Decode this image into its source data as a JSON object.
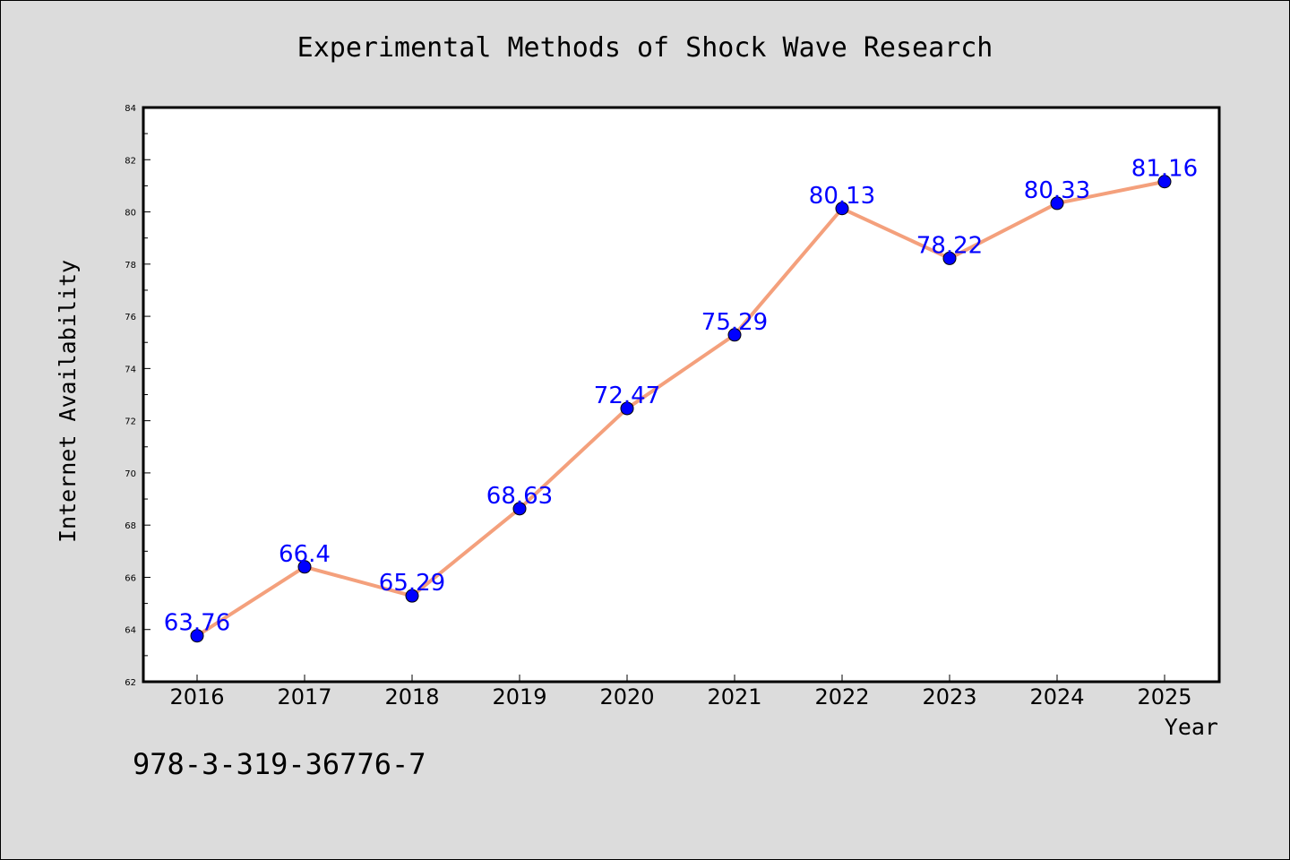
{
  "chart_data": {
    "type": "line",
    "title": "Experimental Methods of Shock Wave Research",
    "xlabel": "Year",
    "ylabel": "Internet Availability",
    "categories": [
      "2016",
      "2017",
      "2018",
      "2019",
      "2020",
      "2021",
      "2022",
      "2023",
      "2024",
      "2025"
    ],
    "values": [
      63.76,
      66.4,
      65.29,
      68.63,
      72.47,
      75.29,
      80.13,
      78.22,
      80.33,
      81.16
    ],
    "data_labels": [
      "63.76",
      "66.4",
      "65.29",
      "68.63",
      "72.47",
      "75.29",
      "80.13",
      "78.22",
      "80.33",
      "81.16"
    ],
    "ylim": [
      62,
      84
    ],
    "yticks": [
      "62",
      "64",
      "66",
      "68",
      "70",
      "72",
      "74",
      "76",
      "78",
      "80",
      "82",
      "84"
    ],
    "grid": false,
    "colors": {
      "line": "#f4a07c",
      "marker": "#0000ff",
      "label": "#0000ff",
      "background": "#dcdcdc",
      "plot_area": "#ffffff"
    }
  },
  "footer": {
    "isbn": "978-3-319-36776-7"
  }
}
